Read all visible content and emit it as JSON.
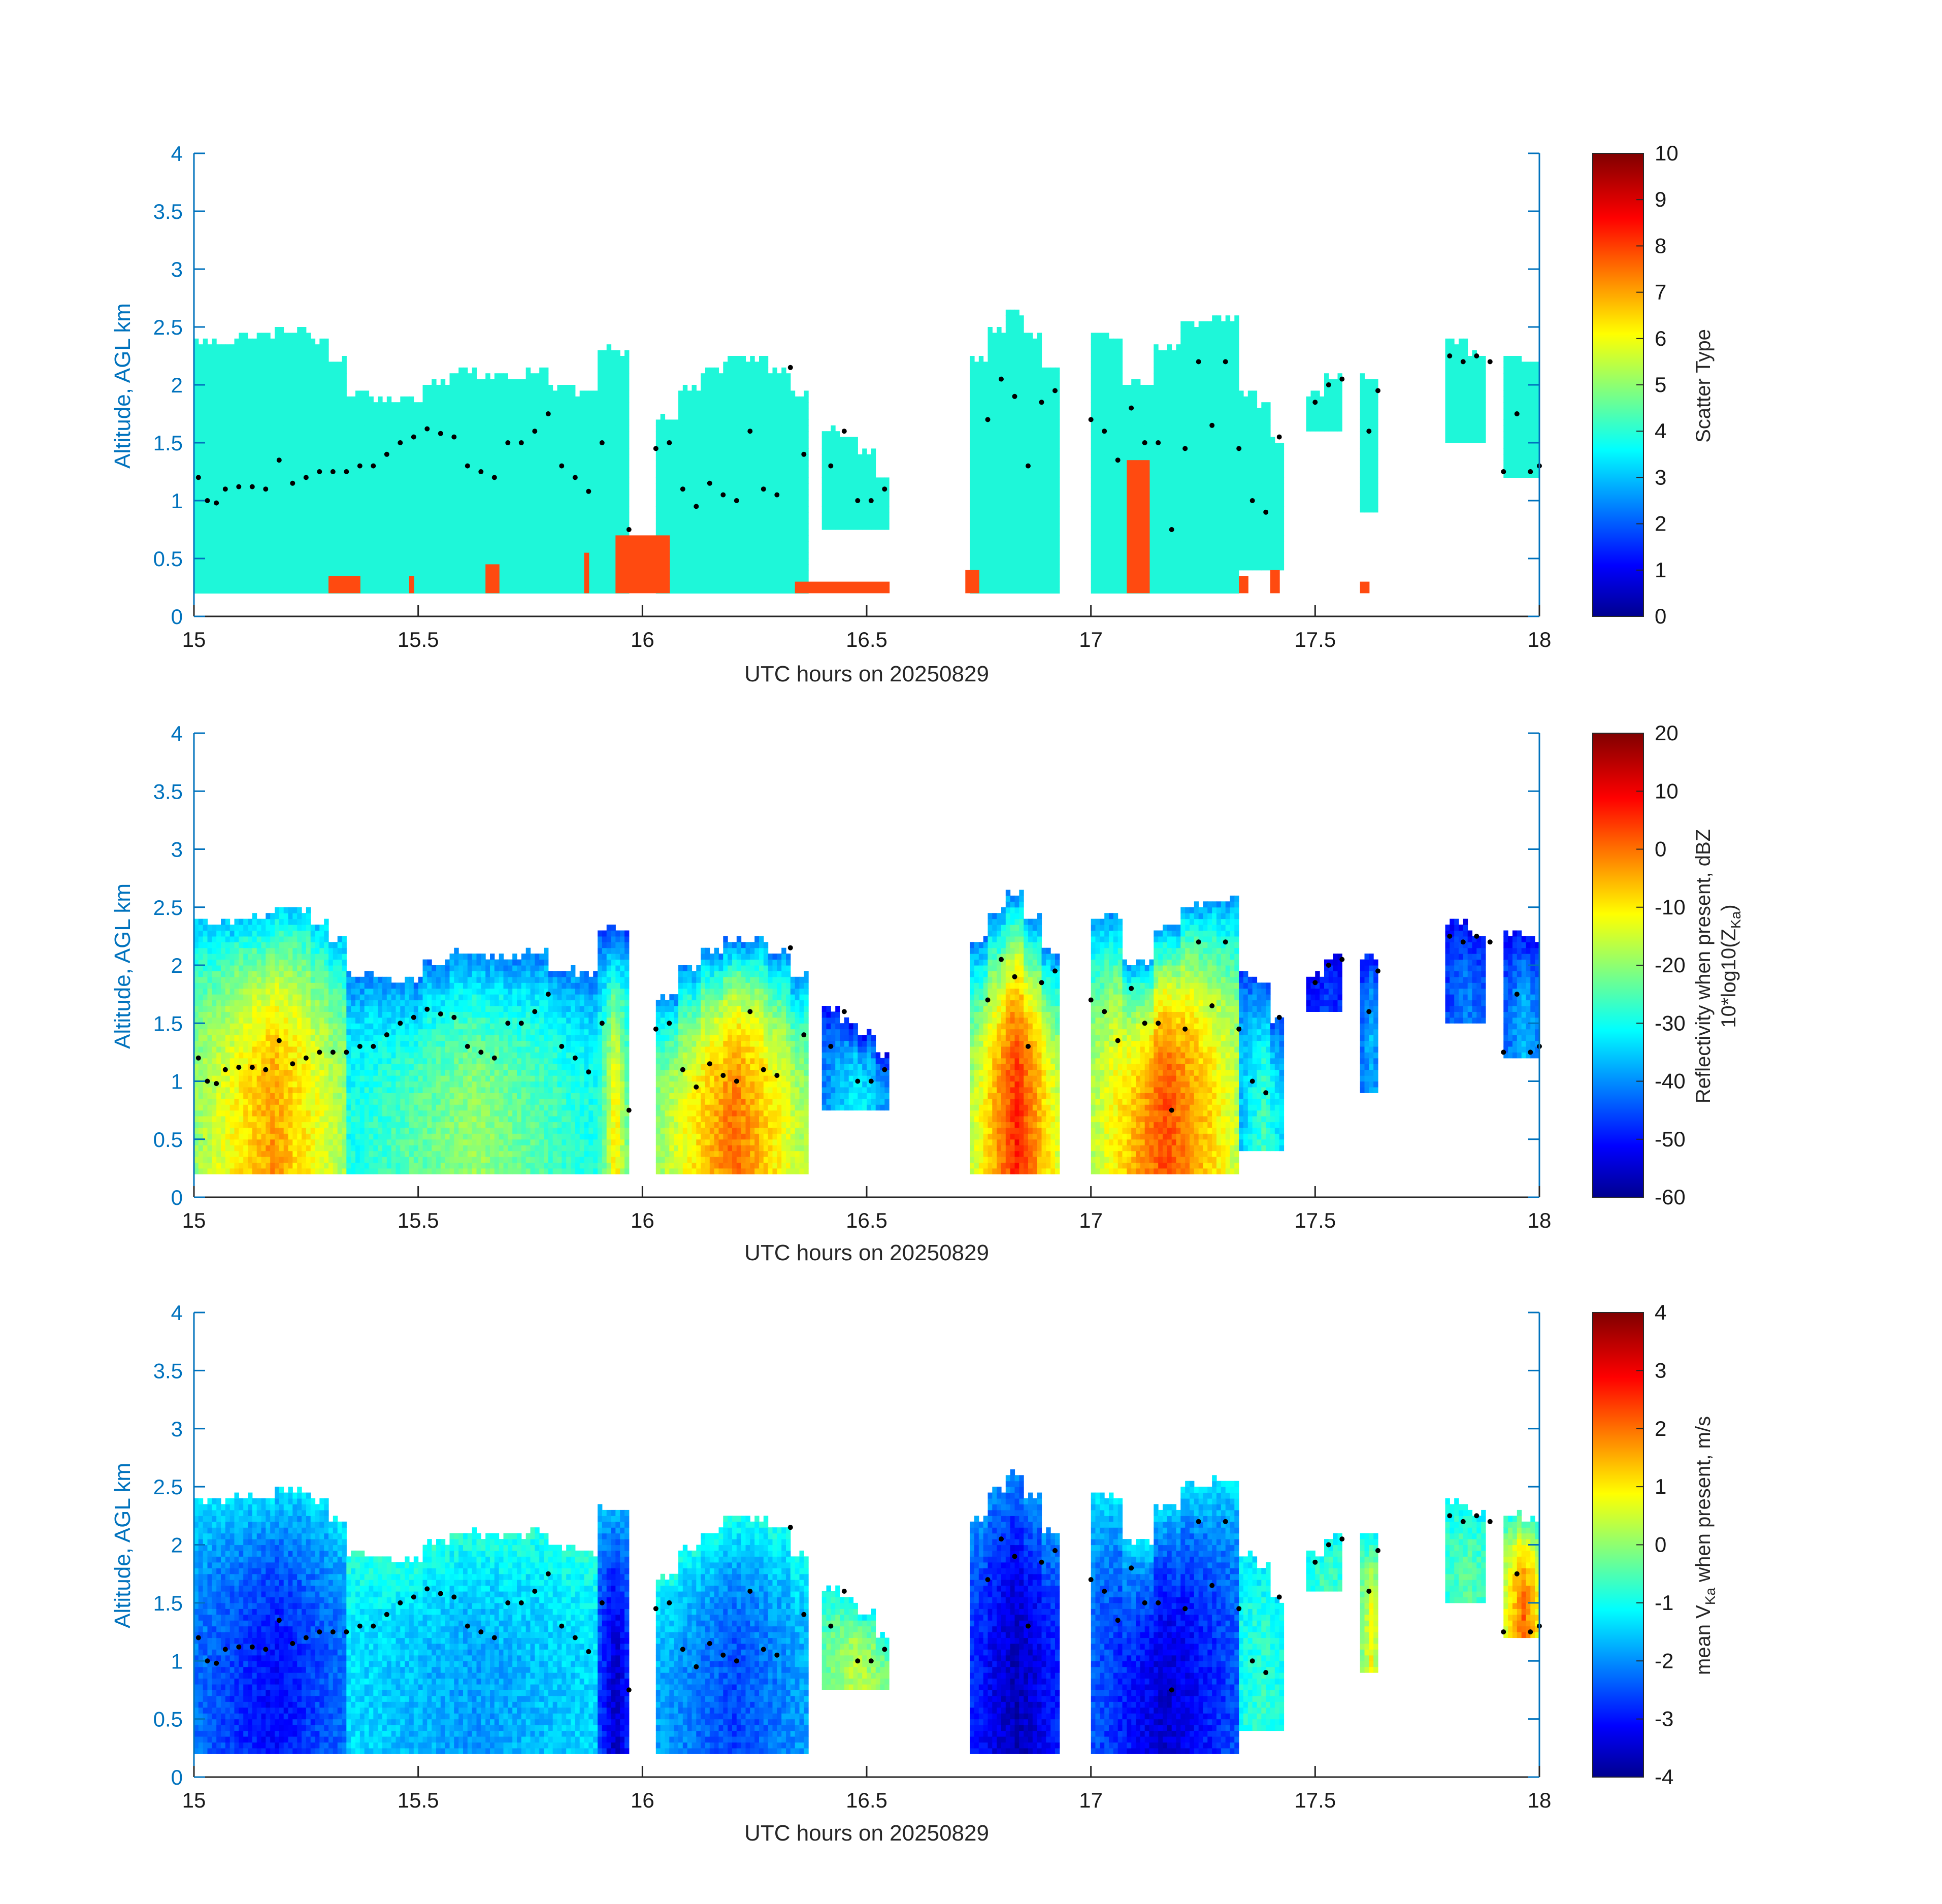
{
  "chart_data": [
    {
      "type": "heatmap",
      "panel": "scatter-type",
      "xlabel": "UTC hours on 20250829",
      "ylabel": "Altitude, AGL km",
      "xlim": [
        15,
        18
      ],
      "ylim": [
        0,
        4
      ],
      "xticks": [
        "15",
        "15.5",
        "16",
        "16.5",
        "17",
        "17.5",
        "18"
      ],
      "yticks": [
        "0",
        "0.5",
        "1",
        "1.5",
        "2",
        "2.5",
        "3",
        "3.5",
        "4"
      ],
      "colorbar": {
        "label": "Scatter Type",
        "label_line2": "",
        "clim": [
          0,
          10
        ],
        "ticks": [
          "0",
          "1",
          "2",
          "3",
          "4",
          "5",
          "6",
          "7",
          "8",
          "9",
          "10"
        ]
      },
      "colormap": "jet",
      "fill_value": 3.6,
      "fill_color": "#1ef7d9",
      "secondary_value": 7.8,
      "secondary_color": "#ff4a10",
      "cloud_segments": [
        {
          "x": [
            15.0,
            15.34
          ],
          "base": 0.2,
          "tops": [
            2.35,
            2.35,
            2.4,
            2.4,
            2.45,
            2.45,
            2.35,
            2.2
          ]
        },
        {
          "x": [
            15.34,
            15.9
          ],
          "base": 0.2,
          "tops": [
            1.9,
            1.85,
            1.85,
            2.0,
            2.1,
            2.05,
            2.05,
            2.1,
            1.95,
            1.9
          ]
        },
        {
          "x": [
            15.9,
            15.97
          ],
          "base": 0.2,
          "tops": [
            2.3,
            2.25
          ]
        },
        {
          "x": [
            16.03,
            16.37
          ],
          "base": 0.2,
          "tops": [
            1.7,
            1.95,
            2.1,
            2.2,
            2.2,
            2.1,
            1.9
          ]
        },
        {
          "x": [
            16.4,
            16.55
          ],
          "base": 0.75,
          "tops": [
            1.6,
            1.5,
            1.4,
            1.2
          ]
        },
        {
          "x": [
            16.73,
            16.93
          ],
          "base": 0.2,
          "tops": [
            2.2,
            2.45,
            2.6,
            2.4,
            2.1
          ]
        },
        {
          "x": [
            17.0,
            17.33
          ],
          "base": 0.2,
          "tops": [
            2.4,
            2.0,
            2.3,
            2.5,
            2.55
          ]
        },
        {
          "x": [
            17.33,
            17.43
          ],
          "base": 0.4,
          "tops": [
            1.9,
            1.8,
            1.5
          ]
        },
        {
          "x": [
            17.48,
            17.56
          ],
          "base": 1.6,
          "tops": [
            1.9,
            2.05
          ]
        },
        {
          "x": [
            17.6,
            17.64
          ],
          "base": 0.9,
          "tops": [
            2.05
          ]
        },
        {
          "x": [
            17.79,
            17.88
          ],
          "base": 1.5,
          "tops": [
            2.35,
            2.25
          ]
        },
        {
          "x": [
            17.92,
            18.0
          ],
          "base": 1.2,
          "tops": [
            2.25,
            2.2
          ]
        }
      ],
      "orange_patches": [
        {
          "x": [
            15.3,
            15.37
          ],
          "y": [
            0.2,
            0.35
          ]
        },
        {
          "x": [
            15.48,
            15.49
          ],
          "y": [
            0.2,
            0.35
          ]
        },
        {
          "x": [
            15.65,
            15.68
          ],
          "y": [
            0.2,
            0.45
          ]
        },
        {
          "x": [
            15.87,
            15.88
          ],
          "y": [
            0.2,
            0.55
          ]
        },
        {
          "x": [
            15.94,
            16.06
          ],
          "y": [
            0.2,
            0.7
          ]
        },
        {
          "x": [
            16.34,
            16.55
          ],
          "y": [
            0.2,
            0.3
          ]
        },
        {
          "x": [
            16.72,
            16.75
          ],
          "y": [
            0.2,
            0.4
          ]
        },
        {
          "x": [
            17.08,
            17.13
          ],
          "y": [
            0.2,
            1.35
          ]
        },
        {
          "x": [
            17.33,
            17.35
          ],
          "y": [
            0.2,
            0.35
          ]
        },
        {
          "x": [
            17.4,
            17.42
          ],
          "y": [
            0.2,
            0.4
          ]
        },
        {
          "x": [
            17.6,
            17.62
          ],
          "y": [
            0.2,
            0.3
          ]
        }
      ],
      "dots": [
        [
          15.01,
          1.2
        ],
        [
          15.03,
          1.0
        ],
        [
          15.05,
          0.98
        ],
        [
          15.07,
          1.1
        ],
        [
          15.1,
          1.12
        ],
        [
          15.13,
          1.12
        ],
        [
          15.16,
          1.1
        ],
        [
          15.19,
          1.35
        ],
        [
          15.22,
          1.15
        ],
        [
          15.25,
          1.2
        ],
        [
          15.28,
          1.25
        ],
        [
          15.31,
          1.25
        ],
        [
          15.34,
          1.25
        ],
        [
          15.37,
          1.3
        ],
        [
          15.4,
          1.3
        ],
        [
          15.43,
          1.4
        ],
        [
          15.46,
          1.5
        ],
        [
          15.49,
          1.55
        ],
        [
          15.52,
          1.62
        ],
        [
          15.55,
          1.58
        ],
        [
          15.58,
          1.55
        ],
        [
          15.61,
          1.3
        ],
        [
          15.64,
          1.25
        ],
        [
          15.67,
          1.2
        ],
        [
          15.7,
          1.5
        ],
        [
          15.73,
          1.5
        ],
        [
          15.76,
          1.6
        ],
        [
          15.79,
          1.75
        ],
        [
          15.82,
          1.3
        ],
        [
          15.85,
          1.2
        ],
        [
          15.88,
          1.08
        ],
        [
          15.91,
          1.5
        ],
        [
          15.97,
          0.75
        ],
        [
          16.03,
          1.45
        ],
        [
          16.06,
          1.5
        ],
        [
          16.09,
          1.1
        ],
        [
          16.12,
          0.95
        ],
        [
          16.15,
          1.15
        ],
        [
          16.18,
          1.05
        ],
        [
          16.21,
          1.0
        ],
        [
          16.24,
          1.6
        ],
        [
          16.27,
          1.1
        ],
        [
          16.3,
          1.05
        ],
        [
          16.33,
          2.15
        ],
        [
          16.36,
          1.4
        ],
        [
          16.42,
          1.3
        ],
        [
          16.45,
          1.6
        ],
        [
          16.48,
          1.0
        ],
        [
          16.51,
          1.0
        ],
        [
          16.54,
          1.1
        ],
        [
          16.77,
          1.7
        ],
        [
          16.8,
          2.05
        ],
        [
          16.83,
          1.9
        ],
        [
          16.86,
          1.3
        ],
        [
          16.89,
          1.85
        ],
        [
          16.92,
          1.95
        ],
        [
          17.0,
          1.7
        ],
        [
          17.03,
          1.6
        ],
        [
          17.06,
          1.35
        ],
        [
          17.09,
          1.8
        ],
        [
          17.12,
          1.5
        ],
        [
          17.15,
          1.5
        ],
        [
          17.18,
          0.75
        ],
        [
          17.21,
          1.45
        ],
        [
          17.24,
          2.2
        ],
        [
          17.27,
          1.65
        ],
        [
          17.3,
          2.2
        ],
        [
          17.33,
          1.45
        ],
        [
          17.36,
          1.0
        ],
        [
          17.39,
          0.9
        ],
        [
          17.42,
          1.55
        ],
        [
          17.5,
          1.85
        ],
        [
          17.53,
          2.0
        ],
        [
          17.56,
          2.05
        ],
        [
          17.62,
          1.6
        ],
        [
          17.64,
          1.95
        ],
        [
          17.8,
          2.25
        ],
        [
          17.83,
          2.2
        ],
        [
          17.86,
          2.25
        ],
        [
          17.89,
          2.2
        ],
        [
          17.92,
          1.25
        ],
        [
          17.95,
          1.75
        ],
        [
          17.98,
          1.25
        ],
        [
          18.0,
          1.3
        ]
      ]
    },
    {
      "type": "heatmap",
      "panel": "reflectivity",
      "xlabel": "UTC hours on 20250829",
      "ylabel": "Altitude, AGL km",
      "xlim": [
        15,
        18
      ],
      "ylim": [
        0,
        4
      ],
      "xticks": [
        "15",
        "15.5",
        "16",
        "16.5",
        "17",
        "17.5",
        "18"
      ],
      "yticks": [
        "0",
        "0.5",
        "1",
        "1.5",
        "2",
        "2.5",
        "3",
        "3.5",
        "4"
      ],
      "colorbar": {
        "label": "Reflectivity when present, dBZ",
        "label_line2": "10*log10(Z",
        "label_line2_sub": "Ka",
        "label_line2_end": ")",
        "clim": [
          -60,
          20
        ],
        "ticks": [
          "-60",
          "-50",
          "-40",
          "-30",
          "-20",
          "-10",
          "0",
          "10",
          "20"
        ]
      },
      "colormap": "jet",
      "cloud_segments": [
        {
          "x": [
            15.0,
            15.34
          ],
          "base": 0.2,
          "tops": [
            2.35,
            2.35,
            2.4,
            2.4,
            2.45,
            2.45,
            2.35,
            2.2
          ],
          "core": -2,
          "edge": -35
        },
        {
          "x": [
            15.34,
            15.9
          ],
          "base": 0.2,
          "tops": [
            1.9,
            1.85,
            1.85,
            2.0,
            2.1,
            2.05,
            2.05,
            2.1,
            1.95,
            1.9
          ],
          "core": -18,
          "edge": -40
        },
        {
          "x": [
            15.9,
            15.97
          ],
          "base": 0.2,
          "tops": [
            2.3,
            2.25
          ],
          "core": -8,
          "edge": -45
        },
        {
          "x": [
            16.03,
            16.37
          ],
          "base": 0.2,
          "tops": [
            1.7,
            1.95,
            2.1,
            2.2,
            2.2,
            2.1,
            1.9
          ],
          "core": 2,
          "edge": -40
        },
        {
          "x": [
            16.4,
            16.55
          ],
          "base": 0.75,
          "tops": [
            1.6,
            1.5,
            1.4,
            1.2
          ],
          "core": -30,
          "edge": -50
        },
        {
          "x": [
            16.73,
            16.93
          ],
          "base": 0.2,
          "tops": [
            2.2,
            2.45,
            2.6,
            2.4,
            2.1
          ],
          "core": 8,
          "edge": -40
        },
        {
          "x": [
            17.0,
            17.33
          ],
          "base": 0.2,
          "tops": [
            2.4,
            2.0,
            2.3,
            2.5,
            2.55
          ],
          "core": 5,
          "edge": -38
        },
        {
          "x": [
            17.33,
            17.43
          ],
          "base": 0.4,
          "tops": [
            1.9,
            1.8,
            1.5
          ],
          "core": -25,
          "edge": -45
        },
        {
          "x": [
            17.48,
            17.56
          ],
          "base": 1.6,
          "tops": [
            1.9,
            2.05
          ],
          "core": -45,
          "edge": -52
        },
        {
          "x": [
            17.6,
            17.64
          ],
          "base": 0.9,
          "tops": [
            2.05
          ],
          "core": -35,
          "edge": -48
        },
        {
          "x": [
            17.79,
            17.88
          ],
          "base": 1.5,
          "tops": [
            2.35,
            2.25
          ],
          "core": -40,
          "edge": -50
        },
        {
          "x": [
            17.92,
            18.0
          ],
          "base": 1.2,
          "tops": [
            2.25,
            2.2
          ],
          "core": -35,
          "edge": -50
        }
      ]
    },
    {
      "type": "heatmap",
      "panel": "velocity",
      "xlabel": "UTC hours on 20250829",
      "ylabel": "Altitude, AGL km",
      "xlim": [
        15,
        18
      ],
      "ylim": [
        0,
        4
      ],
      "xticks": [
        "15",
        "15.5",
        "16",
        "16.5",
        "17",
        "17.5",
        "18"
      ],
      "yticks": [
        "0",
        "0.5",
        "1",
        "1.5",
        "2",
        "2.5",
        "3",
        "3.5",
        "4"
      ],
      "colorbar": {
        "label_pre": "mean V",
        "label_sub": "Ka",
        "label_post": " when present, m/s",
        "clim": [
          -4,
          4
        ],
        "ticks": [
          "-4",
          "-3",
          "-2",
          "-1",
          "0",
          "1",
          "2",
          "3",
          "4"
        ]
      },
      "colormap": "jet",
      "cloud_segments": [
        {
          "x": [
            15.0,
            15.34
          ],
          "base": 0.2,
          "tops": [
            2.35,
            2.35,
            2.4,
            2.4,
            2.45,
            2.45,
            2.35,
            2.2
          ],
          "core": -3.0,
          "edge": -1.2
        },
        {
          "x": [
            15.34,
            15.9
          ],
          "base": 0.2,
          "tops": [
            1.9,
            1.85,
            1.85,
            2.0,
            2.1,
            2.05,
            2.05,
            2.1,
            1.95,
            1.9
          ],
          "core": -1.8,
          "edge": -0.7
        },
        {
          "x": [
            15.9,
            15.97
          ],
          "base": 0.2,
          "tops": [
            2.3,
            2.25
          ],
          "core": -3.5,
          "edge": -1.5
        },
        {
          "x": [
            16.03,
            16.37
          ],
          "base": 0.2,
          "tops": [
            1.7,
            1.95,
            2.1,
            2.2,
            2.2,
            2.1,
            1.9
          ],
          "core": -2.5,
          "edge": -0.8
        },
        {
          "x": [
            16.4,
            16.55
          ],
          "base": 0.75,
          "tops": [
            1.6,
            1.5,
            1.4,
            1.2
          ],
          "core": 0.5,
          "edge": -1.0
        },
        {
          "x": [
            16.73,
            16.93
          ],
          "base": 0.2,
          "tops": [
            2.2,
            2.45,
            2.6,
            2.4,
            2.1
          ],
          "core": -3.6,
          "edge": -1.8
        },
        {
          "x": [
            17.0,
            17.33
          ],
          "base": 0.2,
          "tops": [
            2.4,
            2.0,
            2.3,
            2.5,
            2.55
          ],
          "core": -3.4,
          "edge": -1.2
        },
        {
          "x": [
            17.33,
            17.43
          ],
          "base": 0.4,
          "tops": [
            1.9,
            1.8,
            1.5
          ],
          "core": -0.6,
          "edge": -1.2
        },
        {
          "x": [
            17.48,
            17.56
          ],
          "base": 1.6,
          "tops": [
            1.9,
            2.05
          ],
          "core": -0.5,
          "edge": -1.0
        },
        {
          "x": [
            17.6,
            17.64
          ],
          "base": 0.9,
          "tops": [
            2.05
          ],
          "core": 1.0,
          "edge": -1.0
        },
        {
          "x": [
            17.79,
            17.88
          ],
          "base": 1.5,
          "tops": [
            2.35,
            2.25
          ],
          "core": -0.3,
          "edge": -1.0
        },
        {
          "x": [
            17.92,
            18.0
          ],
          "base": 1.2,
          "tops": [
            2.25,
            2.2
          ],
          "core": 2.2,
          "edge": -0.8
        }
      ]
    }
  ]
}
